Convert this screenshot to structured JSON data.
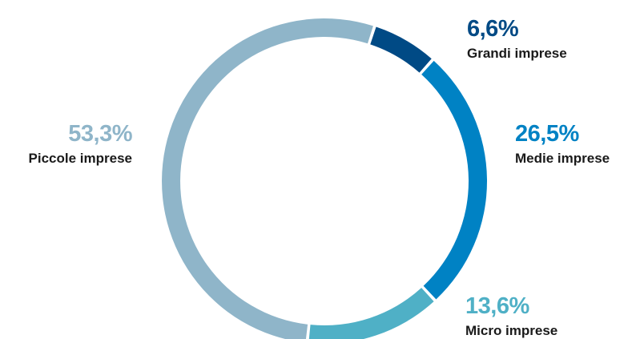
{
  "chart_data": {
    "type": "pie",
    "variant": "donut",
    "title": "",
    "slices": [
      {
        "label": "Grandi imprese",
        "value": 6.6,
        "value_text": "6,6%",
        "color": "#004a85"
      },
      {
        "label": "Medie imprese",
        "value": 26.5,
        "value_text": "26,5%",
        "color": "#0082c4"
      },
      {
        "label": "Micro imprese",
        "value": 13.6,
        "value_text": "13,6%",
        "color": "#4fb0c6"
      },
      {
        "label": "Piccole imprese",
        "value": 53.3,
        "value_text": "53,3%",
        "color": "#8fb5c9"
      }
    ],
    "label_text_color": "#1a1a1a",
    "legend": "none"
  }
}
